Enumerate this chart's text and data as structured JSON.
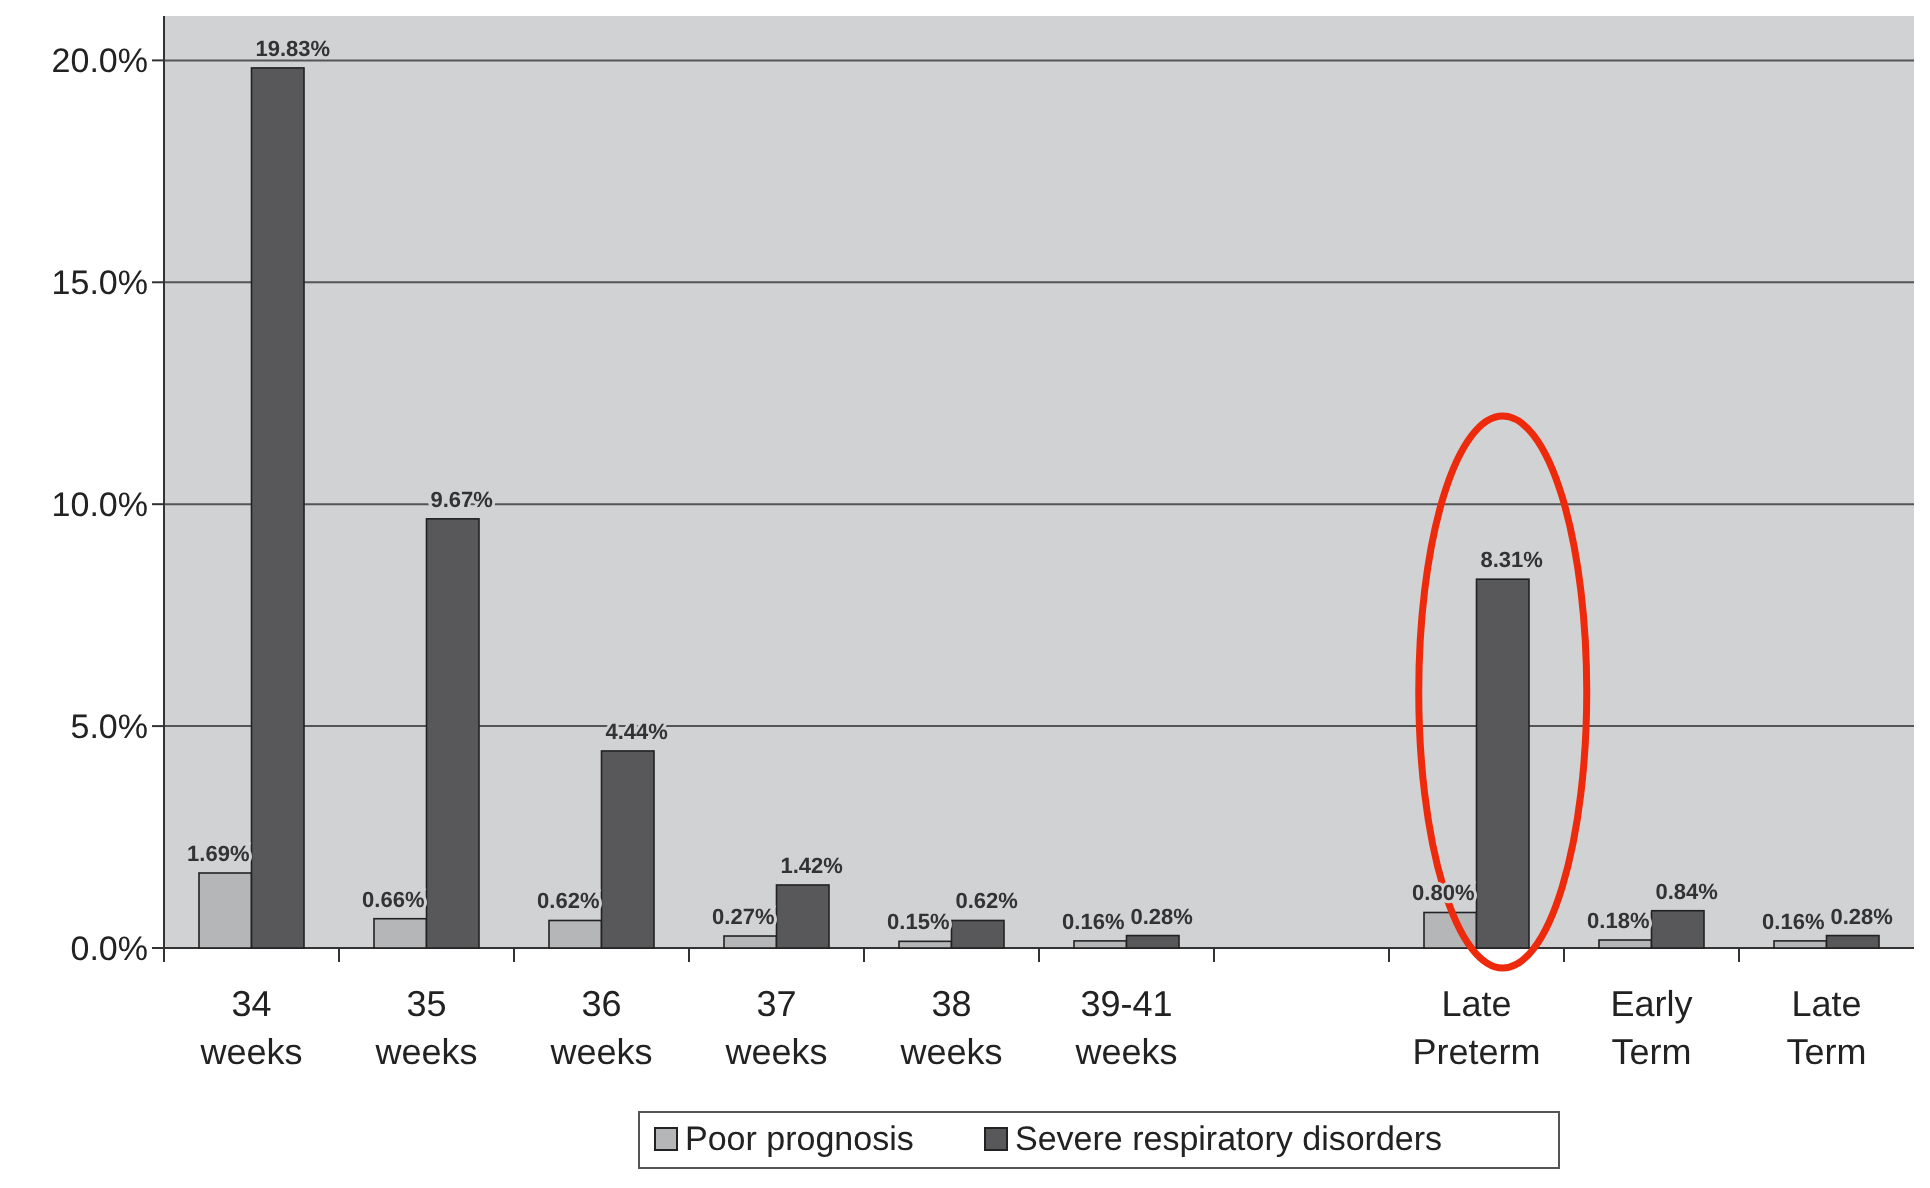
{
  "chart_data": {
    "type": "bar",
    "categories": [
      "34\nweeks",
      "35\nweeks",
      "36\nweeks",
      "37\nweeks",
      "38\nweeks",
      "39-41\nweeks",
      null,
      "Late\nPreterm",
      "Early\nTerm",
      "Late\nTerm"
    ],
    "series": [
      {
        "name": "Poor prognosis",
        "color": "#b5b6b8",
        "values": [
          1.69,
          0.66,
          0.62,
          0.27,
          0.15,
          0.16,
          null,
          0.8,
          0.18,
          0.16
        ],
        "value_labels": [
          "1.69%",
          "0.66%",
          "0.62%",
          "0.27%",
          "0.15%",
          "0.16%",
          null,
          "0.80%",
          "0.18%",
          "0.16%"
        ]
      },
      {
        "name": "Severe respiratory disorders",
        "color": "#58585a",
        "values": [
          19.83,
          9.67,
          4.44,
          1.42,
          0.62,
          0.28,
          null,
          8.31,
          0.84,
          0.28
        ],
        "value_labels": [
          "19.83%",
          "9.67%",
          "4.44%",
          "1.42%",
          "0.62%",
          "0.28%",
          null,
          "8.31%",
          "0.84%",
          "0.28%"
        ]
      }
    ],
    "ylim": [
      0,
      21
    ],
    "yticks": [
      {
        "value": 0,
        "label": "0.0%"
      },
      {
        "value": 5,
        "label": "5.0%"
      },
      {
        "value": 10,
        "label": "10.0%"
      },
      {
        "value": 15,
        "label": "15.0%"
      },
      {
        "value": 20,
        "label": "20.0%"
      }
    ],
    "grid": "y",
    "legend": "bottom"
  }
}
